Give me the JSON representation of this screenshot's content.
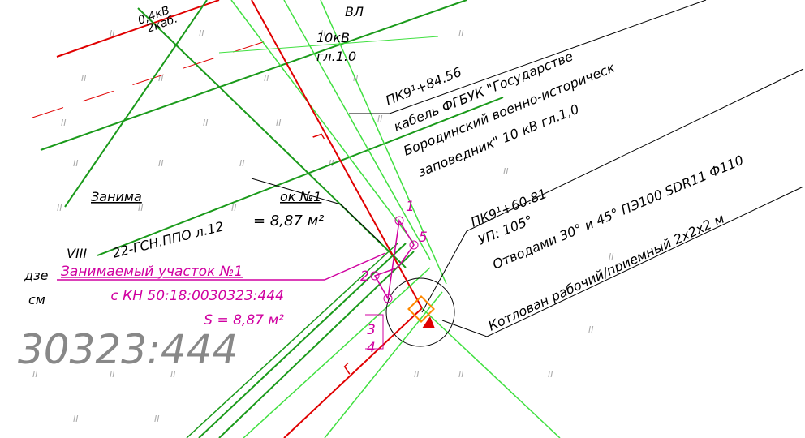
{
  "drawing": {
    "top_labels": {
      "line_04kv": "0,4кВ",
      "cables_2": "2каб.",
      "vl": "ВЛ",
      "kv10": "10кВ",
      "gl10": "гл.1.0"
    },
    "cable_callout": {
      "station": "ПК9¹+84.56",
      "line1": "кабель ФГБУК \"Государстве",
      "line2": "Бородинский военно-историческ",
      "line3": "заповедник\" 10 кВ гл.1,0"
    },
    "pit_callout": {
      "station": "ПК9¹+60.81",
      "angle": "УП: 105°",
      "bends": "Отводами 30° и 45° ПЭ100 SDR11 Ф110",
      "pit": "Котлован рабочий/приемный 2х2х2 м"
    },
    "plot_label": {
      "title": "Занимаемый участок №1",
      "cadastral": "с КН 50:18:0030323:444",
      "area": "S = 8,87 м²"
    },
    "background_labels": {
      "plot_part1": "Занима",
      "plot_part2": "ок №1",
      "sheet_ref": "22-ГСН.ППО л.12",
      "area_part": "= 8,87 м²",
      "roman": "VIII",
      "dze": "дзе",
      "sm": "см",
      "big_number": "30323:444"
    },
    "points": [
      "1",
      "2",
      "3",
      "4",
      "5"
    ],
    "cable_marker": "Г"
  }
}
